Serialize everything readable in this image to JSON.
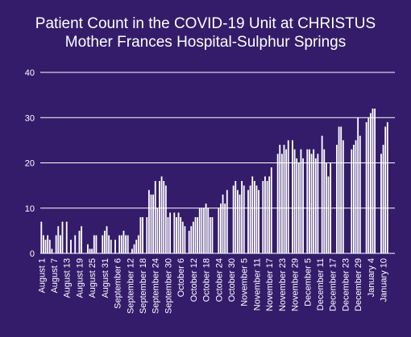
{
  "chart_data": {
    "type": "bar",
    "title_lines": [
      "Patient Count in the COVID-19 Unit at CHRISTUS",
      "Mother Frances Hospital-Sulphur Springs"
    ],
    "xlabel": "",
    "ylabel": "",
    "ylim": [
      0,
      40
    ],
    "y_ticks": [
      0,
      10,
      20,
      30,
      40
    ],
    "grid": true,
    "legend": "none",
    "categories": [
      "August 1",
      "August 7",
      "August 13",
      "August 19",
      "August 25",
      "August 31",
      "September 6",
      "September 12",
      "September 18",
      "September 24",
      "September 30",
      "October 6",
      "October 12",
      "October 18",
      "October 24",
      "October 30",
      "November 5",
      "November 11",
      "November 17",
      "November 23",
      "November 29",
      "December 5",
      "December 11",
      "December 17",
      "December 23",
      "December 29",
      "January 4",
      "January 10"
    ],
    "values": [
      [
        7,
        4,
        3,
        4,
        3,
        1,
        0
      ],
      [
        4,
        6,
        4,
        7,
        0,
        7,
        0
      ],
      [
        3,
        0,
        4,
        0,
        5,
        6,
        0
      ],
      [
        0,
        2,
        1,
        1,
        4,
        4,
        0
      ],
      [
        0,
        4,
        5,
        6,
        4,
        3,
        0
      ],
      [
        3,
        0,
        4,
        4,
        5,
        4,
        4
      ],
      [
        0,
        1,
        2,
        3,
        4,
        8,
        8
      ],
      [
        0,
        8,
        14,
        13,
        13,
        16,
        10
      ],
      [
        16,
        17,
        16,
        15,
        8,
        9,
        0
      ],
      [
        9,
        8,
        9,
        8,
        7,
        6,
        0
      ],
      [
        5,
        6,
        7,
        8,
        8,
        10,
        10
      ],
      [
        10,
        11,
        10,
        8,
        8,
        0,
        0
      ],
      [
        10,
        11,
        13,
        11,
        14,
        0,
        0
      ],
      [
        15,
        16,
        14,
        13,
        16,
        15,
        0
      ],
      [
        14,
        15,
        17,
        16,
        15,
        14,
        0
      ],
      [
        16,
        17,
        16,
        17,
        19,
        0,
        0
      ],
      [
        22,
        24,
        22,
        24,
        23,
        25,
        0
      ],
      [
        25,
        23,
        21,
        20,
        23,
        21,
        0
      ],
      [
        23,
        23,
        22,
        23,
        21,
        22,
        0
      ],
      [
        26,
        23,
        20,
        17,
        20,
        0,
        0
      ],
      [
        24,
        28,
        28,
        25,
        0,
        0,
        0
      ],
      [
        23,
        24,
        25,
        30,
        26,
        0,
        0
      ],
      [
        29,
        30,
        31,
        32,
        32,
        0,
        0
      ],
      [
        22,
        24,
        28,
        29,
        0,
        0,
        0
      ]
    ]
  },
  "colors": {
    "background": "#341c6b",
    "bars": "#ffffff",
    "text": "#ffffff",
    "grid": "#ffffff"
  }
}
